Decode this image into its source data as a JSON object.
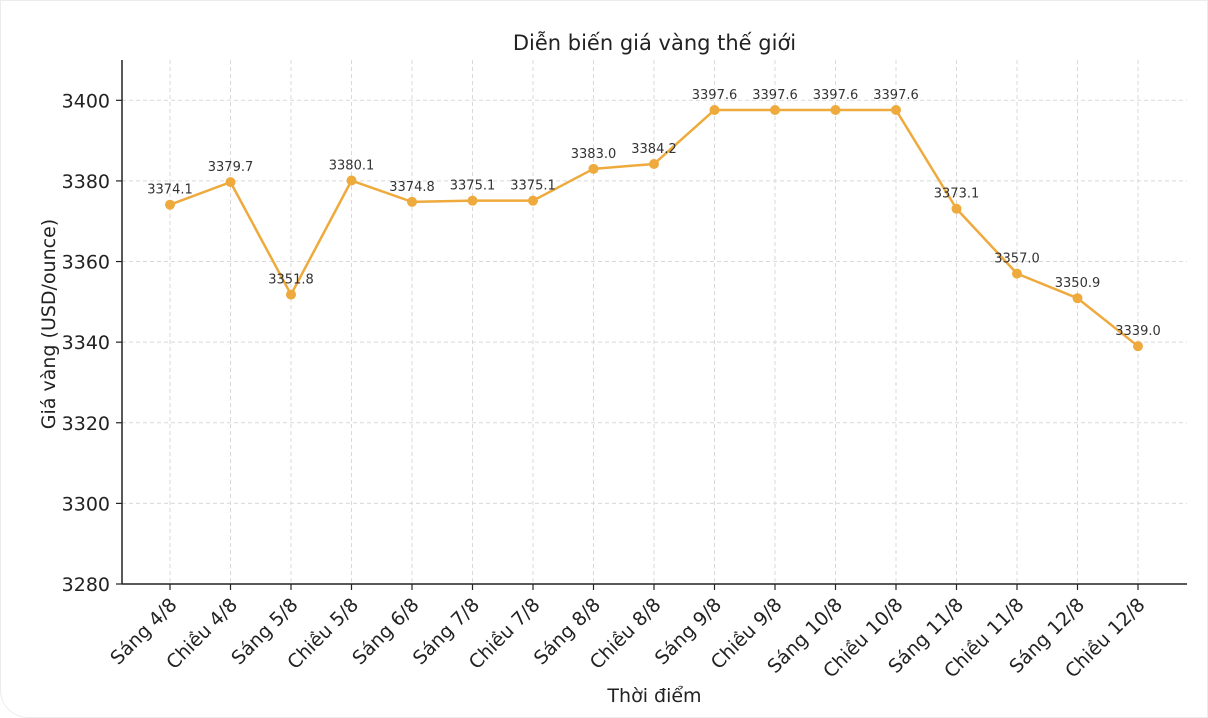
{
  "chart_data": {
    "type": "line",
    "title": "Diễn biến giá vàng thế giới",
    "xlabel": "Thời điểm",
    "ylabel": "Giá vàng (USD/ounce)",
    "categories": [
      "Sáng 4/8",
      "Chiều 4/8",
      "Sáng 5/8",
      "Chiều 5/8",
      "Sáng 6/8",
      "Sáng 7/8",
      "Chiều 7/8",
      "Sáng 8/8",
      "Chiều 8/8",
      "Sáng 9/8",
      "Chiều 9/8",
      "Sáng 10/8",
      "Chiều 10/8",
      "Sáng 11/8",
      "Chiều 11/8",
      "Sáng 12/8",
      "Chiều 12/8"
    ],
    "series": [
      {
        "values": [
          3374.1,
          3379.7,
          3351.8,
          3380.1,
          3374.8,
          3375.1,
          3375.1,
          3383.0,
          3384.2,
          3397.6,
          3397.6,
          3397.6,
          3397.6,
          3373.1,
          3357.0,
          3350.9,
          3339.0
        ],
        "color": "#eeaa3c"
      }
    ],
    "data_labels": [
      "3374.1",
      "3379.7",
      "3351.8",
      "3380.1",
      "3374.8",
      "3375.1",
      "3375.1",
      "3383.0",
      "3384.2",
      "3397.6",
      "3397.6",
      "3397.6",
      "3397.6",
      "3373.1",
      "3357.0",
      "3350.9",
      "3339.0"
    ],
    "yticks": [
      3280,
      3300,
      3320,
      3340,
      3360,
      3380,
      3400
    ],
    "ylim": [
      3280,
      3410
    ],
    "grid": true,
    "grid_style": "dashed",
    "legend": "none"
  }
}
